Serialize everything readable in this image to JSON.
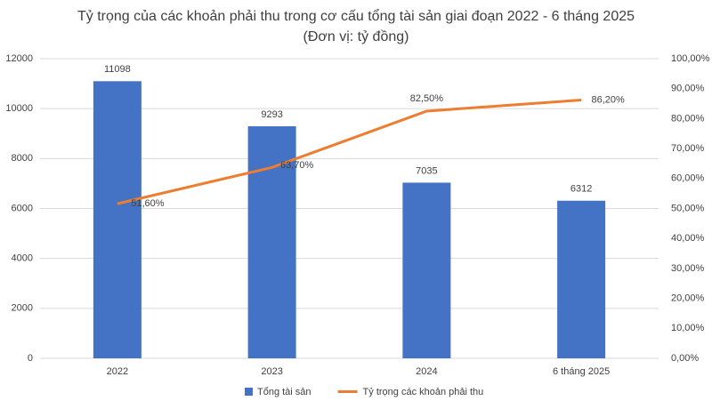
{
  "chart_data": {
    "type": "combo",
    "title": "Tỷ trọng của các khoản phải thu trong cơ cấu tổng tài sản giai đoạn 2022 - 6 tháng 2025",
    "subtitle": "(Đơn vị: tỷ đồng)",
    "categories": [
      "2022",
      "2023",
      "2024",
      "6 tháng 2025"
    ],
    "series": [
      {
        "name": "Tổng tài sản",
        "type": "bar",
        "color": "#4472c4",
        "values": [
          11098,
          9293,
          7035,
          6312
        ]
      },
      {
        "name": "Tỷ trọng các khoản phải thu",
        "type": "line",
        "axis": "y2",
        "color": "#ed7d31",
        "values": [
          51.6,
          63.7,
          82.5,
          86.2
        ],
        "value_labels": [
          "51,60%",
          "63,70%",
          "82,50%",
          "86,20%"
        ]
      }
    ],
    "ylim": [
      0,
      12000
    ],
    "yticks": [
      0,
      2000,
      4000,
      6000,
      8000,
      10000,
      12000
    ],
    "y2lim": [
      0,
      100
    ],
    "y2ticks": [
      {
        "value": 0,
        "label": "0,00%"
      },
      {
        "value": 10,
        "label": "10,00%"
      },
      {
        "value": 20,
        "label": "20,00%"
      },
      {
        "value": 30,
        "label": "30,00%"
      },
      {
        "value": 40,
        "label": "40,00%"
      },
      {
        "value": 50,
        "label": "50,00%"
      },
      {
        "value": 60,
        "label": "60,00%"
      },
      {
        "value": 70,
        "label": "70,00%"
      },
      {
        "value": 80,
        "label": "80,00%"
      },
      {
        "value": 90,
        "label": "90,00%"
      },
      {
        "value": 100,
        "label": "100,00%"
      }
    ],
    "grid": true,
    "legend": "bottom"
  }
}
